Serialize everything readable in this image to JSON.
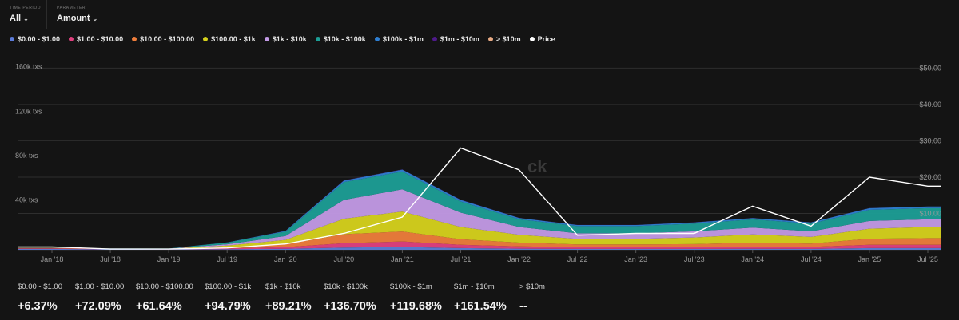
{
  "controls": {
    "time_period": {
      "label": "TIME PERIOD",
      "value": "All"
    },
    "parameter": {
      "label": "PARAMETER",
      "value": "Amount"
    }
  },
  "legend": [
    {
      "label": "$0.00 - $1.00",
      "color": "#5b7bd8"
    },
    {
      "label": "$1.00 - $10.00",
      "color": "#e0407f"
    },
    {
      "label": "$10.00 - $100.00",
      "color": "#ee7d3b"
    },
    {
      "label": "$100.00 - $1k",
      "color": "#d6d21c"
    },
    {
      "label": "$1k - $10k",
      "color": "#c39ae6"
    },
    {
      "label": "$10k - $100k",
      "color": "#1c9e96"
    },
    {
      "label": "$100k - $1m",
      "color": "#2e7fd2"
    },
    {
      "label": "$1m - $10m",
      "color": "#4e1a8a"
    },
    {
      "label": "> $10m",
      "color": "#e8aa84"
    },
    {
      "label": "Price",
      "color": "#ffffff"
    }
  ],
  "watermark": "ck",
  "chart_data": {
    "type": "area",
    "stacked": true,
    "x": [
      "Jan '18",
      "Jul '18",
      "Jan '19",
      "Jul '19",
      "Jan '20",
      "Jul '20",
      "Jan '21",
      "Jul '21",
      "Jan '22",
      "Jul '22",
      "Jan '23",
      "Jul '23",
      "Jan '24",
      "Jul '24",
      "Jan '25",
      "Jul '25"
    ],
    "x_tick_labels": [
      "Jan '18",
      "Jul '18",
      "Jan '19",
      "Jul '19",
      "Jan '20",
      "Jul '20",
      "Jan '21",
      "Jul '21",
      "Jan '22",
      "Jul '22",
      "Jan '23",
      "Jul '23",
      "Jan '24",
      "Jul '24",
      "Jan '25",
      "Jul '25"
    ],
    "y_left": {
      "tick_labels": [
        "40k txs",
        "80k txs",
        "120k txs",
        "160k txs"
      ],
      "ticks": [
        40000,
        80000,
        120000,
        160000
      ],
      "range": [
        0,
        172000
      ]
    },
    "y_right": {
      "tick_labels": [
        "$10.00",
        "$20.00",
        "$30.00",
        "$40.00",
        "$50.00"
      ],
      "ticks": [
        10,
        20,
        30,
        40,
        50
      ],
      "range": [
        0,
        52.5
      ]
    },
    "series": [
      {
        "name": "$0.00 - $1.00",
        "values": [
          800,
          400,
          300,
          500,
          900,
          2000,
          2500,
          1500,
          1000,
          800,
          800,
          800,
          900,
          800,
          1500,
          1500
        ]
      },
      {
        "name": "$1.00 - $10.00",
        "values": [
          400,
          300,
          300,
          800,
          1500,
          4000,
          5000,
          3000,
          2000,
          1500,
          1500,
          1500,
          2000,
          1800,
          3000,
          3000
        ]
      },
      {
        "name": "$10.00 - $100.00",
        "values": [
          300,
          200,
          200,
          1000,
          2500,
          8000,
          9000,
          5000,
          3500,
          2500,
          2500,
          2800,
          3500,
          3000,
          5500,
          6000
        ]
      },
      {
        "name": "$100.00 - $1k",
        "values": [
          200,
          150,
          150,
          1500,
          4000,
          14000,
          18000,
          11000,
          7000,
          5000,
          5000,
          6000,
          7500,
          6000,
          9000,
          10000
        ]
      },
      {
        "name": "$1k - $10k",
        "values": [
          100,
          100,
          100,
          1200,
          3500,
          17000,
          20000,
          13000,
          7000,
          5000,
          5000,
          5500,
          6000,
          5000,
          7000,
          7000
        ]
      },
      {
        "name": "$10k - $100k",
        "values": [
          100,
          100,
          100,
          1500,
          4000,
          16000,
          16000,
          10000,
          7000,
          6500,
          6500,
          7000,
          7500,
          7000,
          10000,
          10000
        ]
      },
      {
        "name": "$100k - $1m",
        "values": [
          0,
          0,
          0,
          200,
          600,
          1500,
          1800,
          1500,
          1200,
          1000,
          1000,
          1100,
          1200,
          1100,
          1500,
          1500
        ]
      },
      {
        "name": "$1m - $10m",
        "values": [
          0,
          0,
          0,
          0,
          50,
          100,
          150,
          100,
          80,
          60,
          60,
          70,
          80,
          70,
          100,
          100
        ]
      },
      {
        "name": "> $10m",
        "values": [
          0,
          0,
          0,
          0,
          0,
          0,
          0,
          0,
          0,
          0,
          0,
          0,
          0,
          0,
          0,
          0
        ]
      }
    ],
    "price": {
      "name": "Price",
      "values": [
        0.8,
        0.2,
        0.2,
        0.5,
        1.6,
        4.5,
        9.0,
        28.0,
        22.0,
        4.0,
        4.5,
        4.5,
        12.0,
        6.5,
        20.0,
        17.5
      ]
    }
  },
  "stats": [
    {
      "label": "$0.00 - $1.00",
      "value": "+6.37%"
    },
    {
      "label": "$1.00 - $10.00",
      "value": "+72.09%"
    },
    {
      "label": "$10.00 - $100.00",
      "value": "+61.64%"
    },
    {
      "label": "$100.00 - $1k",
      "value": "+94.79%"
    },
    {
      "label": "$1k - $10k",
      "value": "+89.21%"
    },
    {
      "label": "$10k - $100k",
      "value": "+136.70%"
    },
    {
      "label": "$100k - $1m",
      "value": "+119.68%"
    },
    {
      "label": "$1m - $10m",
      "value": "+161.54%"
    },
    {
      "label": "> $10m",
      "value": "--"
    }
  ]
}
